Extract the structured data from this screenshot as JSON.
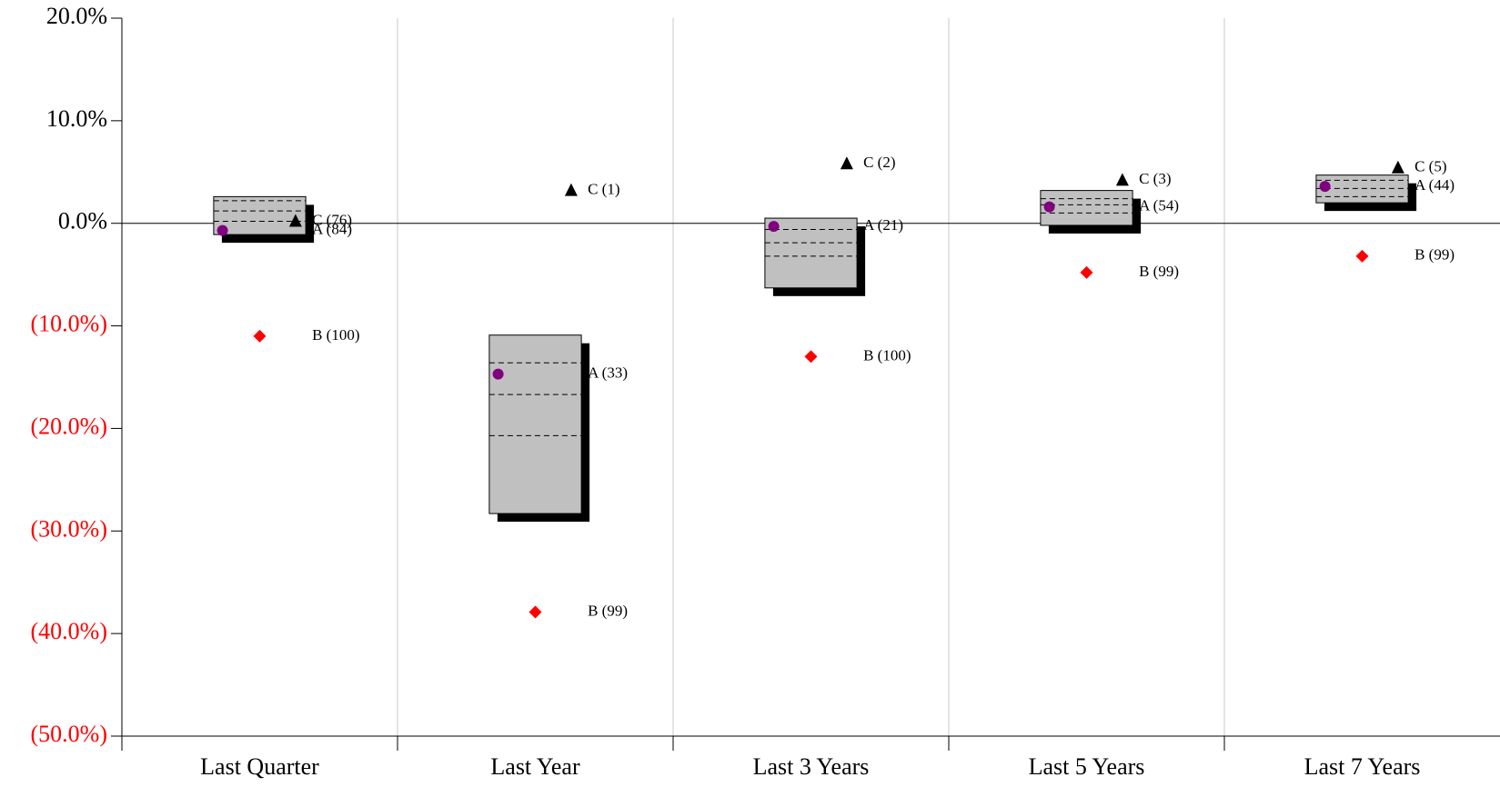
{
  "chart_data": {
    "type": "floating-bar",
    "categories": [
      "Last Quarter",
      "Last Year",
      "Last 3 Years",
      "Last 5 Years",
      "Last 7 Years"
    ],
    "ylim": [
      -50,
      20
    ],
    "yticks": [
      {
        "value": 20,
        "label": "20.0%"
      },
      {
        "value": 10,
        "label": "10.0%"
      },
      {
        "value": 0,
        "label": "0.0%"
      },
      {
        "value": -10,
        "label": "(10.0%)"
      },
      {
        "value": -20,
        "label": "(20.0%)"
      },
      {
        "value": -30,
        "label": "(30.0%)"
      },
      {
        "value": -40,
        "label": "(40.0%)"
      },
      {
        "value": -50,
        "label": "(50.0%)"
      }
    ],
    "negative_tick_color": "#ff0000",
    "grid": true,
    "boxes": {
      "color": "#c0c0c0",
      "top": [
        2.6,
        -10.9,
        0.5,
        3.2,
        4.7
      ],
      "upper": [
        2.2,
        -13.6,
        -0.6,
        2.4,
        4.2
      ],
      "median": [
        1.2,
        -16.7,
        -1.9,
        1.8,
        3.4
      ],
      "lower": [
        0.2,
        -20.7,
        -3.2,
        1.0,
        2.6
      ],
      "bottom": [
        -1.1,
        -28.3,
        -6.3,
        -0.2,
        2.0
      ]
    },
    "series": [
      {
        "marker": "circle",
        "color": "#800080",
        "values": [
          -0.7,
          -14.7,
          -0.3,
          1.6,
          3.6
        ],
        "labels": [
          "A (84)",
          "A (33)",
          "A (21)",
          "A (54)",
          "A (44)"
        ]
      },
      {
        "marker": "diamond",
        "color": "#ff0000",
        "values": [
          -11.0,
          -37.9,
          -13.0,
          -4.8,
          -3.2
        ],
        "labels": [
          "B (100)",
          "B (99)",
          "B (100)",
          "B (99)",
          "B (99)"
        ]
      },
      {
        "marker": "triangle",
        "color": "#000000",
        "values": [
          0.2,
          3.2,
          5.8,
          4.2,
          5.4
        ],
        "labels": [
          "C (76)",
          "C (1)",
          "C (2)",
          "C (3)",
          "C (5)"
        ]
      }
    ]
  }
}
